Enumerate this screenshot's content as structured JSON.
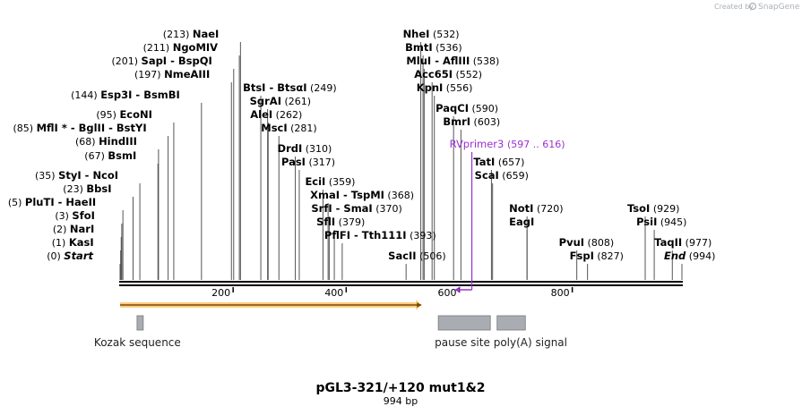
{
  "branding": {
    "created_by": "Created by",
    "app": "SnapGene"
  },
  "map": {
    "title": "pGL3-321/+120 mut1&2",
    "length_label": "994 bp",
    "length": 994
  },
  "colors": {
    "primer": "#9b30d0",
    "feature_arrow": "#f5a623",
    "feature_box": "#a9adb3"
  },
  "axis_ticks": [
    {
      "value": 200,
      "label": "200"
    },
    {
      "value": 400,
      "label": "400"
    },
    {
      "value": 600,
      "label": "600"
    },
    {
      "value": 800,
      "label": "800"
    }
  ],
  "sites": [
    {
      "pos": 0,
      "names": [
        "Start"
      ],
      "pos_label": "(0)",
      "side": "left",
      "italic": true
    },
    {
      "pos": 1,
      "names": [
        "KasI"
      ],
      "pos_label": "(1)",
      "side": "left"
    },
    {
      "pos": 2,
      "names": [
        "NarI"
      ],
      "pos_label": "(2)",
      "side": "left"
    },
    {
      "pos": 3,
      "names": [
        "SfoI"
      ],
      "pos_label": "(3)",
      "side": "left"
    },
    {
      "pos": 5,
      "names": [
        "PluTI",
        "HaeII"
      ],
      "pos_label": "(5)",
      "side": "left"
    },
    {
      "pos": 23,
      "names": [
        "BbsI"
      ],
      "pos_label": "(23)",
      "side": "left"
    },
    {
      "pos": 35,
      "names": [
        "StyI",
        "NcoI"
      ],
      "pos_label": "(35)",
      "side": "left"
    },
    {
      "pos": 67,
      "names": [
        "BsmI"
      ],
      "pos_label": "(67)",
      "side": "left"
    },
    {
      "pos": 68,
      "names": [
        "HindIII"
      ],
      "pos_label": "(68)",
      "side": "left"
    },
    {
      "pos": 85,
      "names": [
        "MflI *",
        "BglII",
        "BstYI"
      ],
      "pos_label": "(85)",
      "side": "left"
    },
    {
      "pos": 95,
      "names": [
        "EcoNI"
      ],
      "pos_label": "(95)",
      "side": "left"
    },
    {
      "pos": 144,
      "names": [
        "Esp3I",
        "BsmBI"
      ],
      "pos_label": "(144)",
      "side": "left"
    },
    {
      "pos": 197,
      "names": [
        "NmeAIII"
      ],
      "pos_label": "(197)",
      "side": "left"
    },
    {
      "pos": 201,
      "names": [
        "SapI",
        "BspQI"
      ],
      "pos_label": "(201)",
      "side": "left"
    },
    {
      "pos": 211,
      "names": [
        "NgoMIV"
      ],
      "pos_label": "(211)",
      "side": "left"
    },
    {
      "pos": 213,
      "names": [
        "NaeI"
      ],
      "pos_label": "(213)",
      "side": "left"
    },
    {
      "pos": 249,
      "names": [
        "BtsI",
        "BtsαI"
      ],
      "pos_label": "(249)",
      "side": "right"
    },
    {
      "pos": 261,
      "names": [
        "SgrAI"
      ],
      "pos_label": "(261)",
      "side": "right"
    },
    {
      "pos": 262,
      "names": [
        "AleI"
      ],
      "pos_label": "(262)",
      "side": "right"
    },
    {
      "pos": 281,
      "names": [
        "MscI"
      ],
      "pos_label": "(281)",
      "side": "right"
    },
    {
      "pos": 310,
      "names": [
        "DrdI"
      ],
      "pos_label": "(310)",
      "side": "right"
    },
    {
      "pos": 317,
      "names": [
        "PasI"
      ],
      "pos_label": "(317)",
      "side": "right"
    },
    {
      "pos": 359,
      "names": [
        "EciI"
      ],
      "pos_label": "(359)",
      "side": "right"
    },
    {
      "pos": 368,
      "names": [
        "XmaI",
        "TspMI"
      ],
      "pos_label": "(368)",
      "side": "right"
    },
    {
      "pos": 370,
      "names": [
        "SrfI",
        "SmaI"
      ],
      "pos_label": "(370)",
      "side": "right"
    },
    {
      "pos": 379,
      "names": [
        "SflI"
      ],
      "pos_label": "(379)",
      "side": "right"
    },
    {
      "pos": 393,
      "names": [
        "PflFI",
        "Tth111I"
      ],
      "pos_label": "(393)",
      "side": "right"
    },
    {
      "pos": 506,
      "names": [
        "SacII"
      ],
      "pos_label": "(506)",
      "side": "right"
    },
    {
      "pos": 532,
      "names": [
        "NheI"
      ],
      "pos_label": "(532)",
      "side": "right"
    },
    {
      "pos": 536,
      "names": [
        "BmtI"
      ],
      "pos_label": "(536)",
      "side": "right"
    },
    {
      "pos": 538,
      "names": [
        "MluI",
        "AflIII"
      ],
      "pos_label": "(538)",
      "side": "right"
    },
    {
      "pos": 552,
      "names": [
        "Acc65I"
      ],
      "pos_label": "(552)",
      "side": "right"
    },
    {
      "pos": 556,
      "names": [
        "KpnI"
      ],
      "pos_label": "(556)",
      "side": "right"
    },
    {
      "pos": 590,
      "names": [
        "PaqCI"
      ],
      "pos_label": "(590)",
      "side": "right"
    },
    {
      "pos": 603,
      "names": [
        "BmrI"
      ],
      "pos_label": "(603)",
      "side": "right"
    },
    {
      "pos": 657,
      "names": [
        "TatI"
      ],
      "pos_label": "(657)",
      "side": "right"
    },
    {
      "pos": 659,
      "names": [
        "ScaI"
      ],
      "pos_label": "(659)",
      "side": "right"
    },
    {
      "pos": 720,
      "names": [
        "NotI"
      ],
      "pos_label": "(720)",
      "side": "right"
    },
    {
      "pos": 720,
      "names": [
        "EagI"
      ],
      "pos_label": "",
      "side": "right"
    },
    {
      "pos": 808,
      "names": [
        "PvuI"
      ],
      "pos_label": "(808)",
      "side": "right"
    },
    {
      "pos": 827,
      "names": [
        "FspI"
      ],
      "pos_label": "(827)",
      "side": "right"
    },
    {
      "pos": 929,
      "names": [
        "TsoI"
      ],
      "pos_label": "(929)",
      "side": "right"
    },
    {
      "pos": 945,
      "names": [
        "PsiI"
      ],
      "pos_label": "(945)",
      "side": "right"
    },
    {
      "pos": 977,
      "names": [
        "TaqII"
      ],
      "pos_label": "(977)",
      "side": "right"
    },
    {
      "pos": 994,
      "names": [
        "End"
      ],
      "pos_label": "(994)",
      "side": "right",
      "italic": true
    }
  ],
  "primer": {
    "name": "RVprimer3",
    "range_label": "(597 .. 616)",
    "start": 597,
    "end": 616
  },
  "features": [
    {
      "name": "",
      "type": "arrow",
      "start": 0,
      "end": 533
    },
    {
      "name": "Kozak sequence",
      "type": "box",
      "start": 30,
      "end": 41
    },
    {
      "name": "pause site",
      "type": "box",
      "start": 563,
      "end": 655
    },
    {
      "name": "poly(A) signal",
      "type": "box",
      "start": 667,
      "end": 717
    }
  ]
}
